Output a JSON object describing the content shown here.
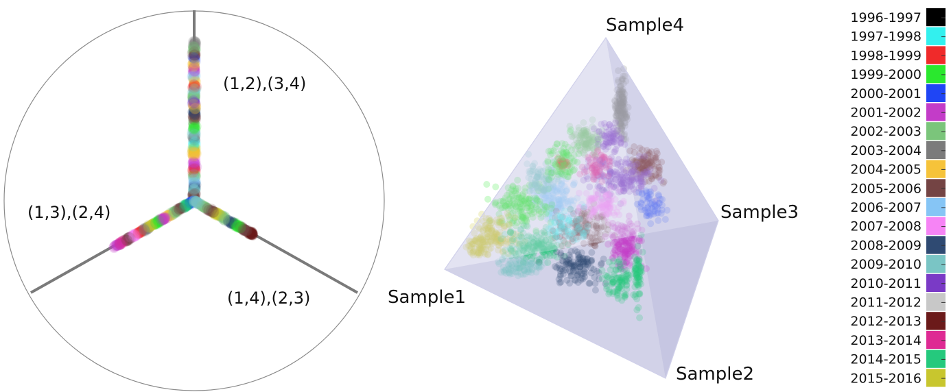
{
  "chart_data": [
    {
      "type": "scatter",
      "name_hint": "triangle-plot",
      "axis_labels": [
        "(1,2),(3,4)",
        "(1,3),(2,4)",
        "(1,4),(2,3)"
      ]
    },
    {
      "type": "scatter",
      "name_hint": "tetrahedron-plot",
      "vertex_labels": [
        "Sample1",
        "Sample2",
        "Sample3",
        "Sample4"
      ]
    }
  ],
  "legend": {
    "items": [
      {
        "label": "1996-1997",
        "color": "#000000"
      },
      {
        "label": "1997-1998",
        "color": "#33f0ee"
      },
      {
        "label": "1998-1999",
        "color": "#f02a2a"
      },
      {
        "label": "1999-2000",
        "color": "#2ae82e"
      },
      {
        "label": "2000-2001",
        "color": "#1f45f5"
      },
      {
        "label": "2001-2002",
        "color": "#c33cc8"
      },
      {
        "label": "2002-2003",
        "color": "#7bc57b"
      },
      {
        "label": "2003-2004",
        "color": "#7b7b7b"
      },
      {
        "label": "2004-2005",
        "color": "#f6c33a"
      },
      {
        "label": "2005-2006",
        "color": "#744444"
      },
      {
        "label": "2006-2007",
        "color": "#86c5f5"
      },
      {
        "label": "2007-2008",
        "color": "#f684f5"
      },
      {
        "label": "2008-2009",
        "color": "#2f4a72"
      },
      {
        "label": "2009-2010",
        "color": "#7ac5c5"
      },
      {
        "label": "2010-2011",
        "color": "#7a3ac6"
      },
      {
        "label": "2011-2012",
        "color": "#c8c8c8"
      },
      {
        "label": "2012-2013",
        "color": "#6b1a1a"
      },
      {
        "label": "2013-2014",
        "color": "#de2a93"
      },
      {
        "label": "2014-2015",
        "color": "#25c97d"
      },
      {
        "label": "2015-2016",
        "color": "#c8c62e"
      }
    ]
  }
}
